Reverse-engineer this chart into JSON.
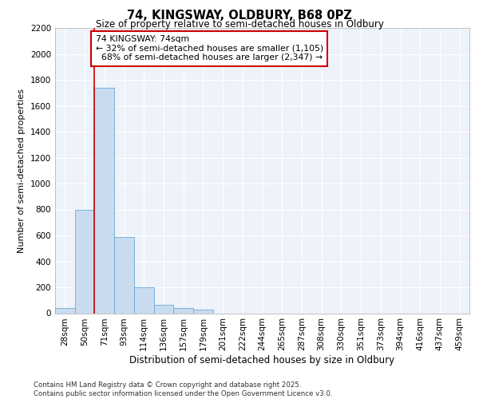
{
  "title_line1": "74, KINGSWAY, OLDBURY, B68 0PZ",
  "title_line2": "Size of property relative to semi-detached houses in Oldbury",
  "xlabel": "Distribution of semi-detached houses by size in Oldbury",
  "ylabel": "Number of semi-detached properties",
  "categories": [
    "28sqm",
    "50sqm",
    "71sqm",
    "93sqm",
    "114sqm",
    "136sqm",
    "157sqm",
    "179sqm",
    "201sqm",
    "222sqm",
    "244sqm",
    "265sqm",
    "287sqm",
    "308sqm",
    "330sqm",
    "351sqm",
    "373sqm",
    "394sqm",
    "416sqm",
    "437sqm",
    "459sqm"
  ],
  "values": [
    40,
    800,
    1740,
    590,
    200,
    65,
    40,
    25,
    0,
    0,
    0,
    0,
    0,
    0,
    0,
    0,
    0,
    0,
    0,
    0,
    0
  ],
  "bar_color": "#c9dcef",
  "bar_edge_color": "#6aaad4",
  "pct_smaller": 32,
  "pct_larger": 68,
  "n_smaller": 1105,
  "n_larger": 2347,
  "annotation_label": "74 KINGSWAY: 74sqm",
  "vline_color": "#cc0000",
  "box_edge_color": "#cc0000",
  "ylim": [
    0,
    2200
  ],
  "yticks": [
    0,
    200,
    400,
    600,
    800,
    1000,
    1200,
    1400,
    1600,
    1800,
    2000,
    2200
  ],
  "background_color": "#ffffff",
  "plot_bg_color": "#eef3fa",
  "grid_color": "#ffffff",
  "footer_line1": "Contains HM Land Registry data © Crown copyright and database right 2025.",
  "footer_line2": "Contains public sector information licensed under the Open Government Licence v3.0."
}
